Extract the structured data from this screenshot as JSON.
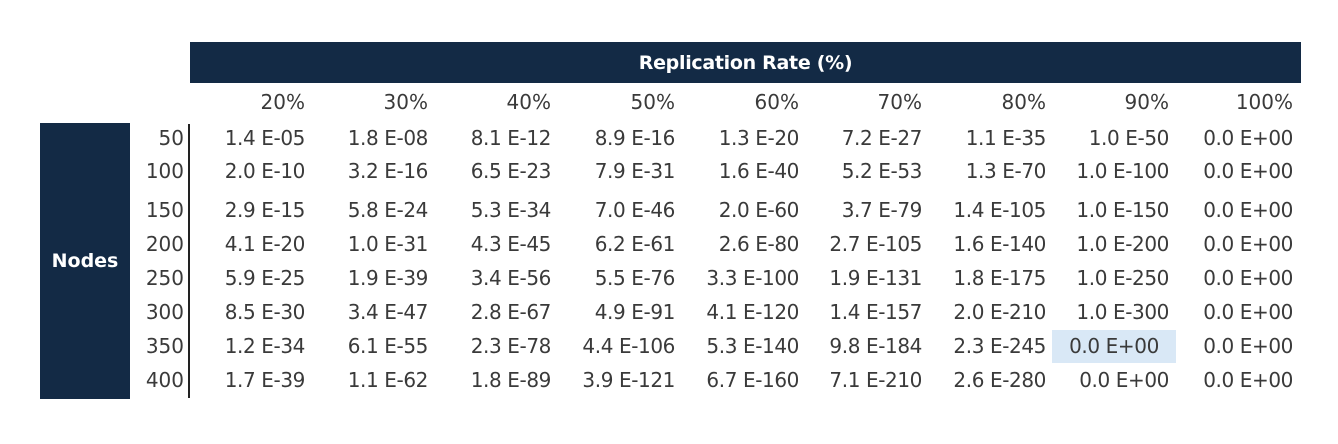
{
  "header": {
    "title": "Replication Rate (%)"
  },
  "side": {
    "title": "Nodes"
  },
  "columns": [
    "20%",
    "30%",
    "40%",
    "50%",
    "60%",
    "70%",
    "80%",
    "90%",
    "100%"
  ],
  "rows": [
    {
      "label": "50",
      "values": [
        "1.4 E-05",
        "1.8 E-08",
        "8.1 E-12",
        "8.9 E-16",
        "1.3 E-20",
        "7.2 E-27",
        "1.1 E-35",
        "1.0 E-50",
        "0.0 E+00"
      ]
    },
    {
      "label": "100",
      "values": [
        "2.0 E-10",
        "3.2 E-16",
        "6.5 E-23",
        "7.9 E-31",
        "1.6 E-40",
        "5.2 E-53",
        "1.3 E-70",
        "1.0 E-100",
        "0.0 E+00"
      ]
    },
    {
      "label": "150",
      "values": [
        "2.9 E-15",
        "5.8 E-24",
        "5.3 E-34",
        "7.0 E-46",
        "2.0 E-60",
        "3.7 E-79",
        "1.4 E-105",
        "1.0 E-150",
        "0.0 E+00"
      ]
    },
    {
      "label": "200",
      "values": [
        "4.1 E-20",
        "1.0 E-31",
        "4.3 E-45",
        "6.2 E-61",
        "2.6 E-80",
        "2.7 E-105",
        "1.6 E-140",
        "1.0 E-200",
        "0.0 E+00"
      ]
    },
    {
      "label": "250",
      "values": [
        "5.9 E-25",
        "1.9 E-39",
        "3.4 E-56",
        "5.5 E-76",
        "3.3 E-100",
        "1.9 E-131",
        "1.8 E-175",
        "1.0 E-250",
        "0.0 E+00"
      ]
    },
    {
      "label": "300",
      "values": [
        "8.5 E-30",
        "3.4 E-47",
        "2.8 E-67",
        "4.9 E-91",
        "4.1 E-120",
        "1.4 E-157",
        "2.0 E-210",
        "1.0 E-300",
        "0.0 E+00"
      ]
    },
    {
      "label": "350",
      "values": [
        "1.2 E-34",
        "6.1 E-55",
        "2.3 E-78",
        "4.4 E-106",
        "5.3 E-140",
        "9.8 E-184",
        "2.3 E-245",
        "0.0 E+00",
        "0.0 E+00"
      ]
    },
    {
      "label": "400",
      "values": [
        "1.7 E-39",
        "1.1 E-62",
        "1.8 E-89",
        "3.9 E-121",
        "6.7 E-160",
        "7.1 E-210",
        "2.6 E-280",
        "0.0 E+00",
        "0.0 E+00"
      ]
    }
  ],
  "highlight": {
    "row": 6,
    "col": 7,
    "color": "#d9e8f6"
  },
  "colors": {
    "header_bg": "#132a45",
    "text": "#3a3a3a"
  }
}
